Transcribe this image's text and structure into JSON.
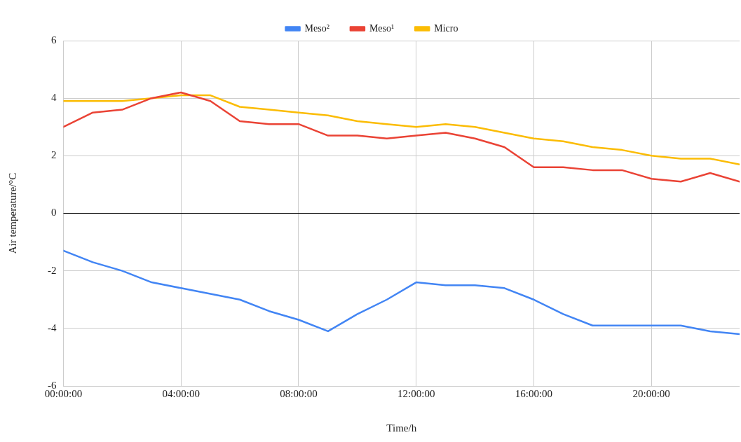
{
  "chart_data": {
    "type": "line",
    "xlabel": "Time/h",
    "ylabel": "Air temperature/°C",
    "x": [
      0,
      1,
      2,
      3,
      4,
      5,
      6,
      7,
      8,
      9,
      10,
      11,
      12,
      13,
      14,
      15,
      16,
      17,
      18,
      19,
      20,
      21,
      22,
      23
    ],
    "series": [
      {
        "name": "Meso²",
        "color": "#4285f4",
        "values": [
          -1.3,
          -1.7,
          -2.0,
          -2.4,
          -2.6,
          -2.8,
          -3.0,
          -3.4,
          -3.7,
          -4.1,
          -3.5,
          -3.0,
          -2.4,
          -2.5,
          -2.5,
          -2.6,
          -3.0,
          -3.5,
          -3.9,
          -3.9,
          -3.9,
          -3.9,
          -4.1,
          -4.2
        ]
      },
      {
        "name": "Meso¹",
        "color": "#ea4335",
        "values": [
          3.0,
          3.5,
          3.6,
          4.0,
          4.2,
          3.9,
          3.2,
          3.1,
          3.1,
          2.7,
          2.7,
          2.6,
          2.7,
          2.8,
          2.6,
          2.3,
          1.6,
          1.6,
          1.5,
          1.5,
          1.2,
          1.1,
          1.4,
          1.1
        ]
      },
      {
        "name": "Micro",
        "color": "#fbbc04",
        "values": [
          3.9,
          3.9,
          3.9,
          4.0,
          4.1,
          4.1,
          3.7,
          3.6,
          3.5,
          3.4,
          3.2,
          3.1,
          3.0,
          3.1,
          3.0,
          2.8,
          2.6,
          2.5,
          2.3,
          2.2,
          2.0,
          1.9,
          1.9,
          1.7
        ]
      }
    ],
    "xlim": [
      0,
      23
    ],
    "xticks": [
      {
        "value": 0,
        "label": "00:00:00"
      },
      {
        "value": 4,
        "label": "04:00:00"
      },
      {
        "value": 8,
        "label": "08:00:00"
      },
      {
        "value": 12,
        "label": "12:00:00"
      },
      {
        "value": 16,
        "label": "16:00:00"
      },
      {
        "value": 20,
        "label": "20:00:00"
      }
    ],
    "ylim": [
      -6,
      6
    ],
    "yticks": [
      -6,
      -4,
      -2,
      0,
      2,
      4,
      6
    ],
    "ref_lines": [
      {
        "axis": "y",
        "value": 0,
        "color": "#000000"
      }
    ],
    "grid": true,
    "legend": "top",
    "marker": "none",
    "line_style": "solid"
  }
}
